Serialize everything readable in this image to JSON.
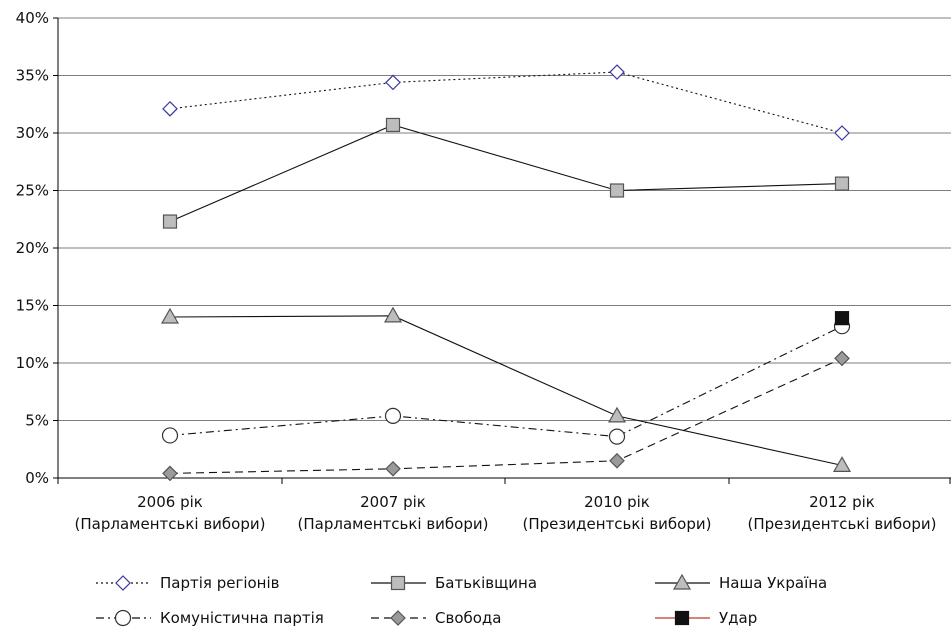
{
  "chart_data": {
    "type": "line",
    "categories": [
      [
        "2006 рік",
        "(Парламентські вибори)"
      ],
      [
        "2007 рік",
        "(Парламентські вибори)"
      ],
      [
        "2010 рік",
        "(Президентські вибори)"
      ],
      [
        "2012 рік",
        "(Президентські вибори)"
      ]
    ],
    "y_ticks": [
      "0%",
      "5%",
      "10%",
      "15%",
      "20%",
      "25%",
      "30%",
      "35%",
      "40%"
    ],
    "ylim": [
      0,
      40
    ],
    "grid": true,
    "legend_position": "bottom",
    "series": [
      {
        "name": "Партія регіонів",
        "values": [
          32.1,
          34.4,
          35.3,
          30.0
        ],
        "line": "dotted",
        "marker": "diamond",
        "marker_fill": "#ffffff",
        "marker_stroke": "#3a3aa0",
        "line_color": "#111111"
      },
      {
        "name": "Батьківщина",
        "values": [
          22.3,
          30.7,
          25.0,
          25.6
        ],
        "line": "solid",
        "marker": "square",
        "marker_fill": "#bdbdbd",
        "marker_stroke": "#555555",
        "line_color": "#111111"
      },
      {
        "name": "Наша Україна",
        "values": [
          14.0,
          14.1,
          5.4,
          1.1
        ],
        "line": "solid",
        "marker": "triangle",
        "marker_fill": "#bdbdbd",
        "marker_stroke": "#555555",
        "line_color": "#111111"
      },
      {
        "name": "Комуністична партія",
        "values": [
          3.7,
          5.4,
          3.6,
          13.2
        ],
        "line": "dashdot",
        "marker": "circle",
        "marker_fill": "#ffffff",
        "marker_stroke": "#333333",
        "line_color": "#111111"
      },
      {
        "name": "Свобода",
        "values": [
          0.4,
          0.8,
          1.5,
          10.4
        ],
        "line": "dashed",
        "marker": "diamond",
        "marker_fill": "#9a9a9a",
        "marker_stroke": "#555555",
        "line_color": "#111111"
      },
      {
        "name": "Удар",
        "values": [
          null,
          null,
          null,
          13.9
        ],
        "line": "solid",
        "marker": "square",
        "marker_fill": "#111111",
        "marker_stroke": "#111111",
        "line_color": "#c0392b"
      }
    ]
  }
}
